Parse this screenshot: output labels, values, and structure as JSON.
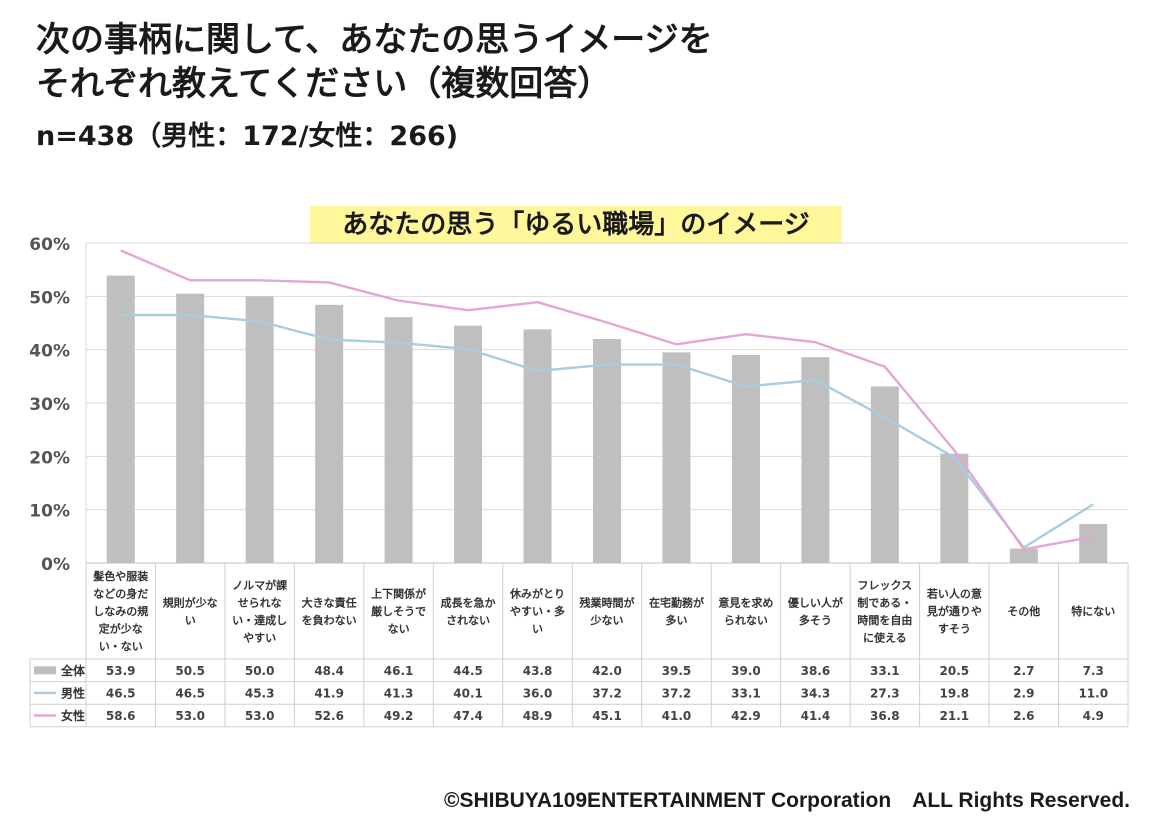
{
  "header": {
    "title_line1": "次の事柄に関して、あなたの思うイメージを",
    "title_line2": "それぞれ教えてください（複数回答）",
    "sample": "n=438（男性：172/女性：266)"
  },
  "copyright": "©SHIBUYA109ENTERTAINMENT Corporation　ALL Rights Reserved.",
  "chart_data": {
    "type": "bar",
    "title": "あなたの思う「ゆるい職場」のイメージ",
    "categories": [
      "髪色や服装などの身だしなみの規定が少ない・ない",
      "規則が少ない",
      "ノルマが課せられない・達成しやすい",
      "大きな責任を負わない",
      "上下関係が厳しそうでない",
      "成長を急かされない",
      "休みがとりやすい・多い",
      "残業時間が少ない",
      "在宅勤務が多い",
      "意見を求められない",
      "優しい人が多そう",
      "フレックス制である・時間を自由に使える",
      "若い人の意見が通りやすそう",
      "その他",
      "特にない"
    ],
    "category_lines": [
      [
        "髪色や服装",
        "などの身だ",
        "しなみの規",
        "定が少な",
        "い・ない"
      ],
      [
        "規則が少な",
        "い"
      ],
      [
        "ノルマが課",
        "せられな",
        "い・達成し",
        "やすい"
      ],
      [
        "大きな責任",
        "を負わない"
      ],
      [
        "上下関係が",
        "厳しそうで",
        "ない"
      ],
      [
        "成長を急か",
        "されない"
      ],
      [
        "休みがとり",
        "やすい・多",
        "い"
      ],
      [
        "残業時間が",
        "少ない"
      ],
      [
        "在宅勤務が",
        "多い"
      ],
      [
        "意見を求め",
        "られない"
      ],
      [
        "優しい人が",
        "多そう"
      ],
      [
        "フレックス",
        "制である・",
        "時間を自由",
        "に使える"
      ],
      [
        "若い人の意",
        "見が通りや",
        "すそう"
      ],
      [
        "その他"
      ],
      [
        "特にない"
      ]
    ],
    "series": [
      {
        "name": "全体",
        "kind": "bar",
        "color": "#bfbfbf",
        "values": [
          53.9,
          50.5,
          50.0,
          48.4,
          46.1,
          44.5,
          43.8,
          42.0,
          39.5,
          39.0,
          38.6,
          33.1,
          20.5,
          2.7,
          7.3
        ]
      },
      {
        "name": "男性",
        "kind": "line",
        "color": "#a8cde0",
        "values": [
          46.5,
          46.5,
          45.3,
          41.9,
          41.3,
          40.1,
          36.0,
          37.2,
          37.2,
          33.1,
          34.3,
          27.3,
          19.8,
          2.9,
          11.0
        ]
      },
      {
        "name": "女性",
        "kind": "line",
        "color": "#e3a7d3",
        "values": [
          58.6,
          53.0,
          53.0,
          52.6,
          49.2,
          47.4,
          48.9,
          45.1,
          41.0,
          42.9,
          41.4,
          36.8,
          21.1,
          2.6,
          4.9
        ]
      }
    ],
    "ylim": [
      0,
      60
    ],
    "yticks": [
      "0%",
      "10%",
      "20%",
      "30%",
      "40%",
      "50%",
      "60%"
    ],
    "grid": true,
    "legend": "data-table"
  }
}
